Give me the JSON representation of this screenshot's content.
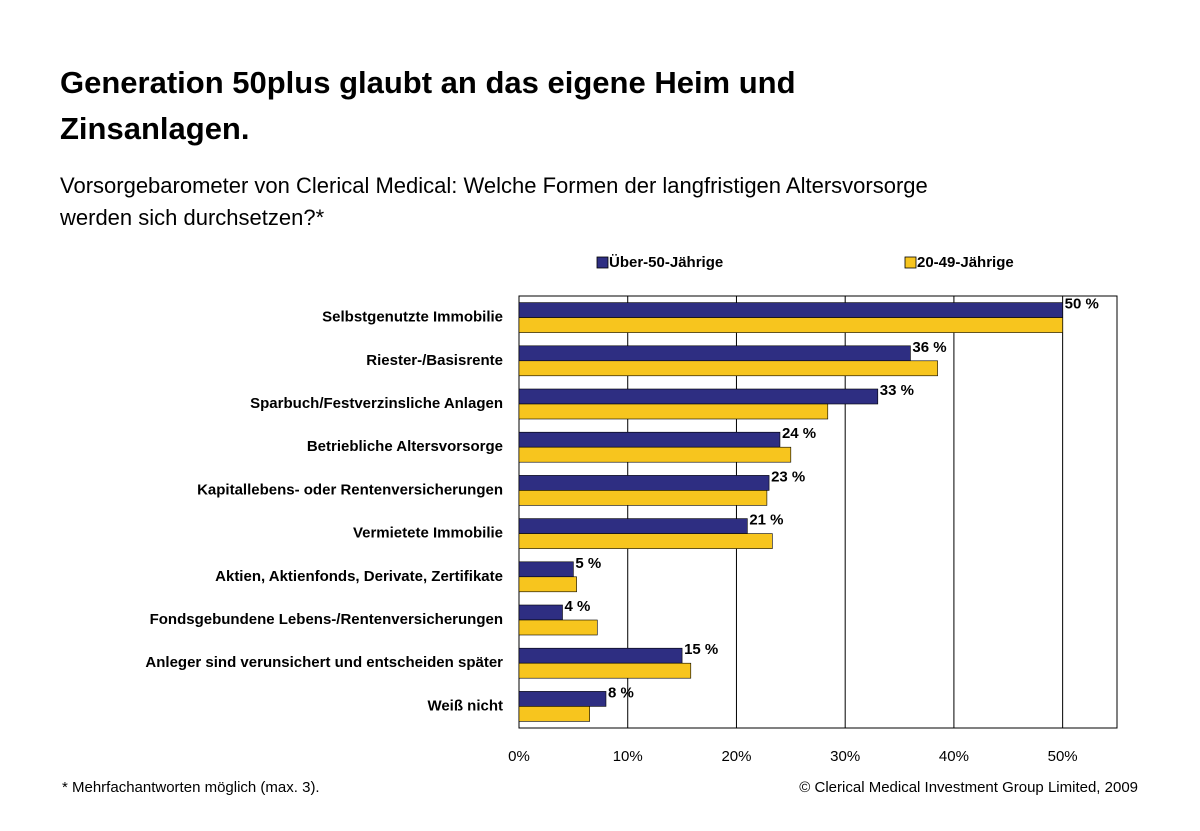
{
  "chart_data": {
    "type": "bar",
    "orientation": "horizontal",
    "title": "Generation 50plus glaubt an das eigene Heim und Zinsanlagen.",
    "subtitle": "Vorsorgebarometer von Clerical Medical: Welche Formen der langfristigen Altersvorsorge werden sich durchsetzen?*",
    "categories": [
      "Selbstgenutzte Immobilie",
      "Riester-/Basisrente",
      "Sparbuch/Festverzinsliche Anlagen",
      "Betriebliche Altersvorsorge",
      "Kapitallebens- oder Rentenversicherungen",
      "Vermietete Immobilie",
      "Aktien, Aktienfonds, Derivate, Zertifikate",
      "Fondsgebundene Lebens-/Rentenversicherungen",
      "Anleger sind verunsichert und entscheiden später",
      "Weiß nicht"
    ],
    "series": [
      {
        "name": "Über-50-Jährige",
        "color": "#2e2e82",
        "values": [
          50,
          36,
          33,
          24,
          23,
          21,
          5,
          4,
          15,
          8
        ],
        "value_labels": [
          "50 %",
          "36 %",
          "33 %",
          "24 %",
          "23 %",
          "21 %",
          "5 %",
          "4 %",
          "15 %",
          "8 %"
        ]
      },
      {
        "name": "20-49-Jährige",
        "color": "#f7c51e",
        "values": [
          50,
          38.5,
          28.4,
          25,
          22.8,
          23.3,
          5.3,
          7.2,
          15.8,
          6.5
        ]
      }
    ],
    "xlim": [
      0,
      55
    ],
    "xticks": [
      {
        "value": 0,
        "label": "0%"
      },
      {
        "value": 10,
        "label": "10%"
      },
      {
        "value": 20,
        "label": "20%"
      },
      {
        "value": 30,
        "label": "30%"
      },
      {
        "value": 40,
        "label": "40%"
      },
      {
        "value": 50,
        "label": "50%"
      }
    ],
    "grid": true,
    "footnote": "* Mehrfachantworten möglich (max. 3).",
    "copyright": "© Clerical Medical Investment Group Limited, 2009"
  }
}
